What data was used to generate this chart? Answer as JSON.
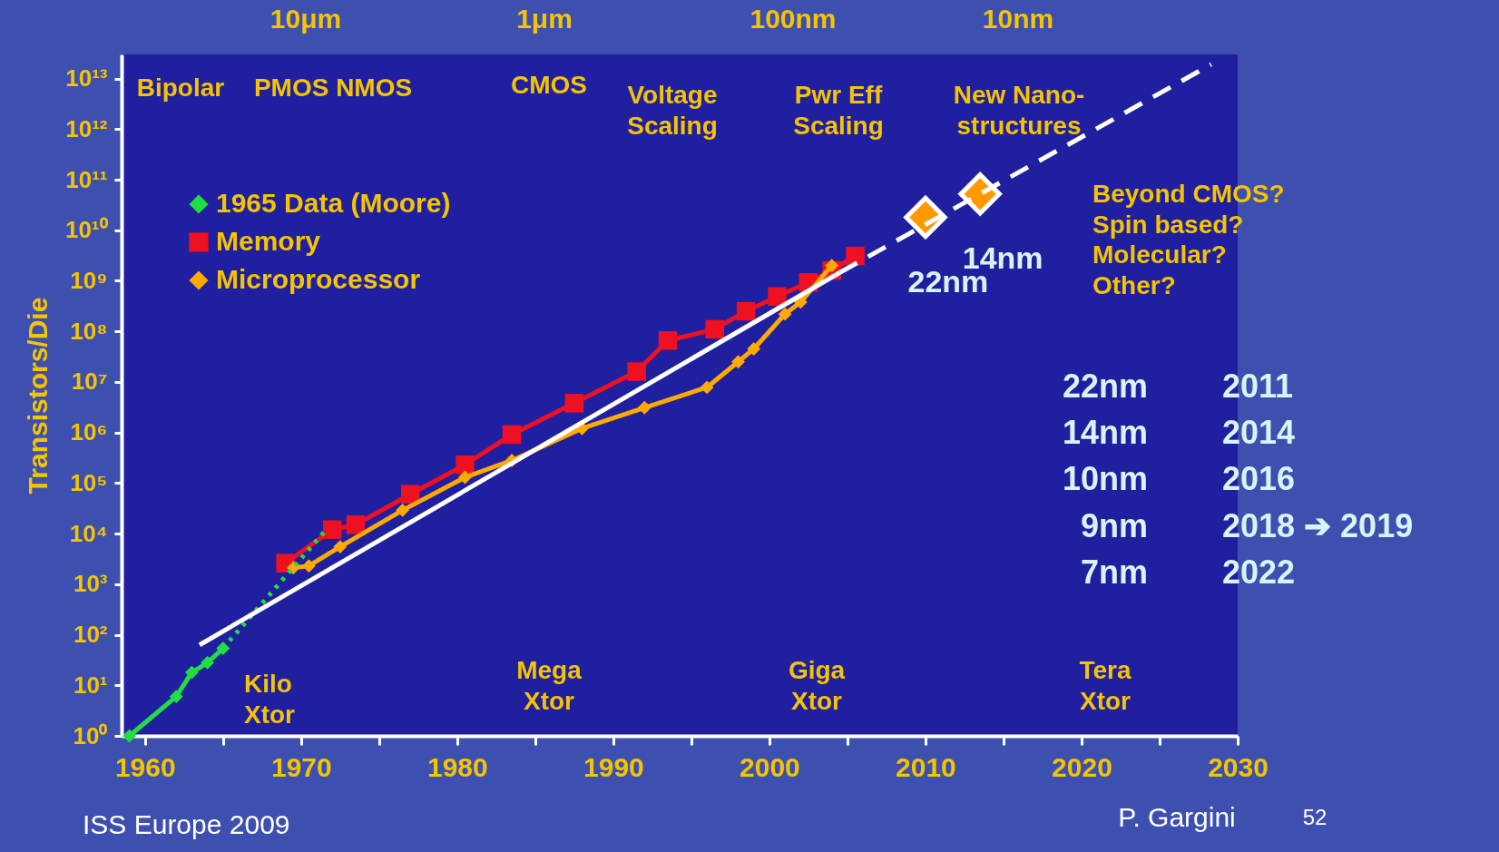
{
  "chart_data": {
    "type": "line",
    "ylabel": "Transistors/Die",
    "xlim": [
      1958.5,
      2030
    ],
    "xticks": [
      1960,
      {
        "value": 1965,
        "label": null
      },
      1970,
      {
        "value": 1975,
        "label": null
      },
      1980,
      {
        "value": 1985,
        "label": null
      },
      1990,
      {
        "value": 1995,
        "label": null
      },
      2000,
      {
        "value": 2005,
        "label": null
      },
      2010,
      {
        "value": 2015,
        "label": null
      },
      2020,
      {
        "value": 2025,
        "label": null
      },
      2030
    ],
    "log": "y",
    "ylim": [
      1,
      30000000000000
    ],
    "yticks": [
      {
        "value": 1,
        "label": "10⁰"
      },
      {
        "value": 10,
        "label": "10¹"
      },
      {
        "value": 100,
        "label": "10²"
      },
      {
        "value": 1000,
        "label": "10³"
      },
      {
        "value": 10000,
        "label": "10⁴"
      },
      {
        "value": 100000,
        "label": "10⁵"
      },
      {
        "value": 1000000,
        "label": "10⁶"
      },
      {
        "value": 10000000,
        "label": "10⁷"
      },
      {
        "value": 100000000,
        "label": "10⁸"
      },
      {
        "value": 1000000000,
        "label": "10⁹"
      },
      {
        "value": 10000000000,
        "label": "10¹⁰"
      },
      {
        "value": 100000000000,
        "label": "10¹¹"
      },
      {
        "value": 1000000000000,
        "label": "10¹²"
      },
      {
        "value": 10000000000000,
        "label": "10¹³"
      }
    ],
    "legend": "top left",
    "series": [
      {
        "name": "1965 Data (Moore)",
        "color": "#22dd44",
        "marker": "diamond",
        "line_style": "solid",
        "x": [
          1959,
          1962,
          1963,
          1964,
          1965
        ],
        "values": [
          1,
          6,
          18,
          28,
          54
        ]
      },
      {
        "name": "Memory",
        "color": "#ee1122",
        "marker": "square",
        "line_style": "solid",
        "x": [
          1969,
          1972,
          1973.5,
          1977,
          1980.5,
          1983.5,
          1987.5,
          1991.5,
          1993.5,
          1996.5,
          1998.5,
          2000.5,
          2002.5,
          2004,
          2005.5
        ],
        "values": [
          2600,
          12000,
          15000,
          60000,
          230000,
          910000,
          3800000,
          16000000,
          66000000,
          110000000,
          250000000,
          490000000,
          930000000,
          1600000000,
          3100000000
        ]
      },
      {
        "name": "Microprocessor",
        "color": "#ffaa00",
        "marker": "diamond",
        "line_style": "solid",
        "x": [
          1969.5,
          1970.5,
          1972.5,
          1976.5,
          1980.5,
          1983.5,
          1988,
          1992,
          1996,
          1998,
          1999,
          2001,
          2002,
          2004
        ],
        "values": [
          2100,
          2300,
          5500,
          29000,
          130000,
          280000,
          1200000,
          3100000,
          7800000,
          25000000,
          45000000,
          220000000,
          380000000,
          2000000000
        ]
      },
      {
        "type": "line",
        "color": "#22dd44",
        "marker": "none",
        "line_style": "dotted",
        "x": [
          1965,
          1971.5
        ],
        "values": [
          54,
          11000
        ]
      },
      {
        "type": "scatter",
        "color": "#ff9900",
        "marker": "diamond",
        "x": [
          2010,
          2013.5
        ],
        "values": [
          18000000000,
          52000000000
        ]
      },
      {
        "type": "line",
        "color": "#ffffff",
        "marker": "none",
        "line_style": "solid",
        "x": [
          1963.5,
          2004.5
        ],
        "values": [
          63,
          1450000000
        ]
      },
      {
        "type": "line",
        "color": "#ffffff",
        "marker": "none",
        "line_style": "dashed",
        "x": [
          2004.5,
          2028.3
        ],
        "values": [
          1450000000,
          19000000000000
        ]
      }
    ],
    "annotations": [
      "10μm",
      "1μm",
      "100nm",
      "10nm",
      "Bipolar",
      "PMOS NMOS",
      "CMOS",
      "Voltage\nScaling",
      "Pwr Eff\nScaling",
      "New Nano-\nstructures",
      "Kilo\nXtor",
      "Mega\nXtor",
      "Giga\nXtor",
      "Tera\nXtor",
      "Beyond CMOS?\nSpin based?\nMolecular?\nOther?",
      "22nm",
      "14nm",
      "10nm",
      "9nm",
      "7nm",
      "2011",
      "2014",
      "2016",
      "2018 ➔ 2019",
      "2022",
      "ISS Europe 2009",
      "P. Gargini",
      "52",
      {
        "text": "22nm",
        "x": 2010,
        "y": 18000000000
      },
      {
        "text": "14nm",
        "x": 2013.5,
        "y": 52000000000
      }
    ]
  }
}
